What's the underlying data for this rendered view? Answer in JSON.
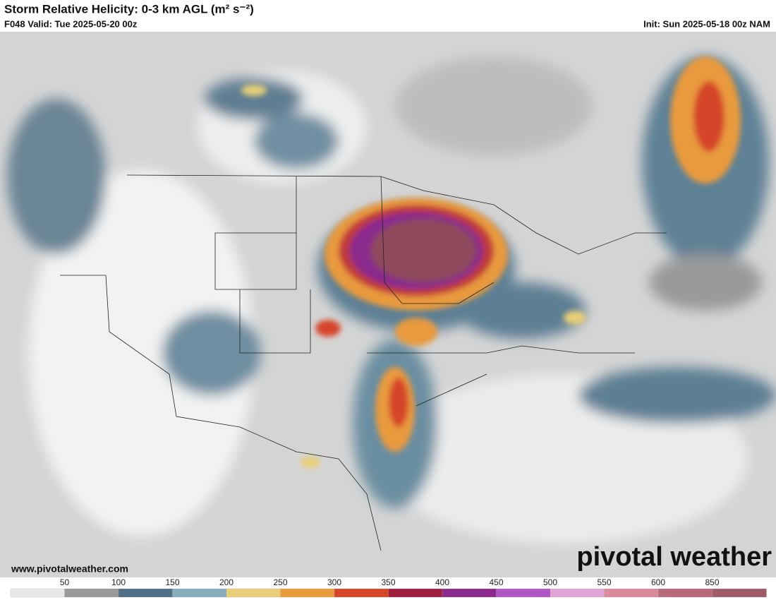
{
  "header": {
    "title": "Storm Relative Helicity: 0-3 km AGL (m² s⁻²)",
    "valid": "F048 Valid: Tue 2025-05-20 00z",
    "init": "Init: Sun 2025-05-18 00z NAM"
  },
  "footer": {
    "url": "www.pivotalweather.com",
    "logo": "pivotal weather"
  },
  "colorbar": {
    "labels": [
      "50",
      "100",
      "150",
      "200",
      "250",
      "300",
      "350",
      "400",
      "450",
      "500",
      "550",
      "600",
      "850"
    ],
    "colors": [
      "#e8e8e8",
      "#9a9a9a",
      "#4f6f85",
      "#86aebd",
      "#e8cf78",
      "#e99a3c",
      "#d5452a",
      "#9e1f3e",
      "#8a2a8c",
      "#b255c4",
      "#e0a6d8",
      "#d98b9b",
      "#b86a7a",
      "#a05a6a"
    ]
  }
}
